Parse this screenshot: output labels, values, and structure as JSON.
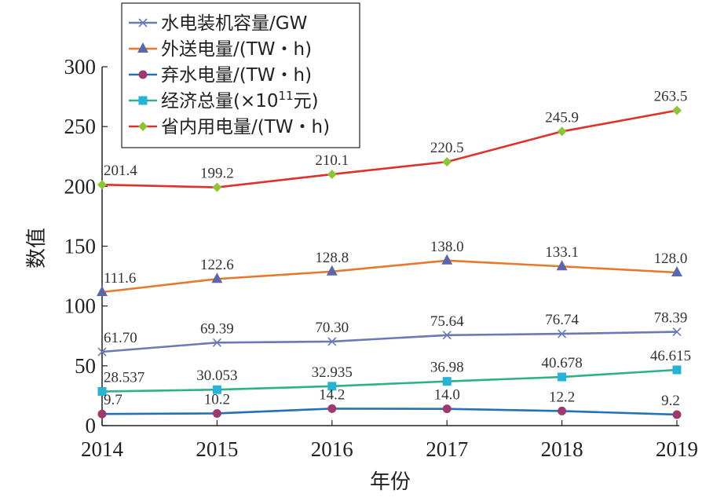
{
  "chart_data": {
    "type": "line",
    "xlabel": "年份",
    "ylabel": "数值",
    "categories": [
      "2014",
      "2015",
      "2016",
      "2017",
      "2018",
      "2019"
    ],
    "ylim": [
      0,
      300
    ],
    "yticks": [
      0,
      50,
      100,
      150,
      200,
      250,
      300
    ],
    "grid": false,
    "legend_position": "top-left",
    "series": [
      {
        "name": "水电装机容量/GW",
        "color": "#6b7ab5",
        "marker": "x",
        "values": [
          61.7,
          69.39,
          70.3,
          75.64,
          76.74,
          78.39
        ],
        "labels": [
          "61.70",
          "69.39",
          "70.30",
          "75.64",
          "76.74",
          "78.39"
        ]
      },
      {
        "name": "外送电量/(TW・h)",
        "color": "#e8782e",
        "marker_color": "#5b68a8",
        "marker": "triangle",
        "values": [
          111.6,
          122.6,
          128.8,
          138.0,
          133.1,
          128.0
        ],
        "labels": [
          "111.6",
          "122.6",
          "128.8",
          "138.0",
          "133.1",
          "128.0"
        ]
      },
      {
        "name": "弃水电量/(TW・h)",
        "color": "#2471b5",
        "marker_color": "#9c3a6e",
        "marker": "circle",
        "values": [
          9.7,
          10.2,
          14.2,
          14.0,
          12.2,
          9.2
        ],
        "labels": [
          "9.7",
          "10.2",
          "14.2",
          "14.0",
          "12.2",
          "9.2"
        ]
      },
      {
        "name": "经济总量(×10^11元)",
        "name_parts": [
          "经济总量(×10",
          "11",
          "元)"
        ],
        "color": "#2db08c",
        "marker_color": "#27b2d6",
        "marker": "square",
        "values": [
          28.537,
          30.053,
          32.935,
          36.98,
          40.678,
          46.615
        ],
        "labels": [
          "28.537",
          "30.053",
          "32.935",
          "36.98",
          "40.678",
          "46.615"
        ]
      },
      {
        "name": "省内用电量/(TW・h)",
        "color": "#e0302a",
        "marker_color": "#8fc43a",
        "marker": "diamond",
        "values": [
          201.4,
          199.2,
          210.1,
          220.5,
          245.9,
          263.5
        ],
        "labels": [
          "201.4",
          "199.2",
          "210.1",
          "220.5",
          "245.9",
          "263.5"
        ]
      }
    ]
  }
}
